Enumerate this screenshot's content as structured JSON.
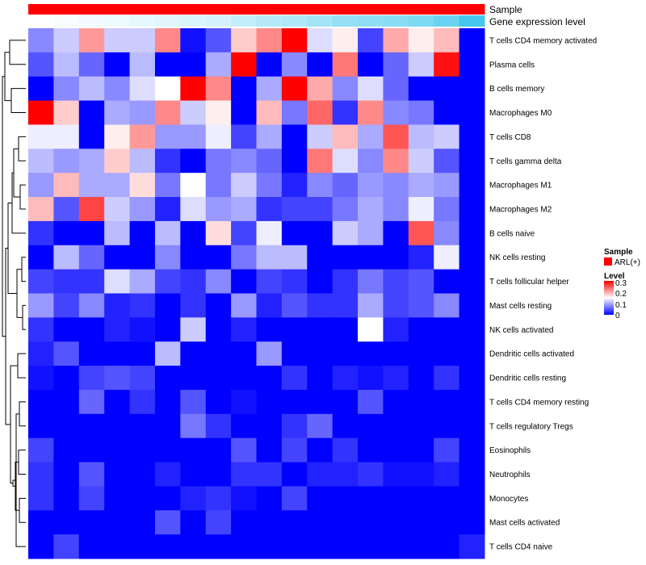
{
  "chart_data": {
    "type": "heatmap",
    "title": "",
    "annotation_rows": [
      "Sample",
      "Gene expression level"
    ],
    "sample_group": "ARL(+)",
    "n_columns": 18,
    "color_scale": {
      "min": 0,
      "max": 0.3,
      "low_color": "#0000ff",
      "mid_color": "#ffffff",
      "high_color": "#ff0000"
    },
    "legend": {
      "sample_title": "Sample",
      "sample_entry": "ARL(+)",
      "level_title": "Level",
      "ticks": [
        "0.3",
        "0.2",
        "0.1",
        "0"
      ]
    },
    "rows": [
      "T cells CD4 memory activated",
      "Plasma cells",
      "B cells memory",
      "Macrophages M0",
      "T cells CD8",
      "T cells gamma delta",
      "Macrophages M1",
      "Macrophages M2",
      "B cells naive",
      "NK cells resting",
      "T cells follicular helper",
      "Mast cells resting",
      "NK cells activated",
      "Dendritic cells activated",
      "Dendritic cells resting",
      "T cells CD4 memory resting",
      "T cells regulatory  Tregs",
      "Eosinophils",
      "Neutrophils",
      "Monocytes",
      "Mast cells activated",
      "T cells CD4 naive"
    ],
    "values": [
      [
        0.08,
        0.12,
        0.21,
        0.12,
        0.12,
        0.22,
        0.01,
        0.05,
        0.18,
        0.22,
        0.3,
        0.13,
        0.16,
        0.04,
        0.2,
        0.16,
        0.19,
        0.0
      ],
      [
        0.05,
        0.11,
        0.06,
        0.0,
        0.11,
        0.0,
        0.0,
        0.1,
        0.3,
        0.0,
        0.08,
        0.0,
        0.23,
        0.0,
        0.06,
        0.12,
        0.29,
        0.0
      ],
      [
        0.0,
        0.08,
        0.11,
        0.08,
        0.13,
        0.15,
        0.3,
        0.22,
        0.0,
        0.1,
        0.3,
        0.2,
        0.08,
        0.13,
        0.06,
        0.0,
        0.0,
        0.0
      ],
      [
        0.3,
        0.18,
        0.0,
        0.1,
        0.09,
        0.22,
        0.12,
        0.16,
        0.0,
        0.19,
        0.07,
        0.24,
        0.03,
        0.22,
        0.08,
        0.07,
        0.0,
        0.0
      ],
      [
        0.14,
        0.14,
        0.0,
        0.16,
        0.21,
        0.09,
        0.09,
        0.14,
        0.04,
        0.1,
        0.0,
        0.12,
        0.19,
        0.1,
        0.25,
        0.11,
        0.12,
        0.0
      ],
      [
        0.11,
        0.09,
        0.1,
        0.18,
        0.11,
        0.03,
        0.0,
        0.07,
        0.08,
        0.06,
        0.0,
        0.23,
        0.13,
        0.08,
        0.22,
        0.12,
        0.05,
        0.0
      ],
      [
        0.09,
        0.19,
        0.1,
        0.1,
        0.17,
        0.07,
        0.15,
        0.07,
        0.12,
        0.07,
        0.02,
        0.08,
        0.06,
        0.09,
        0.08,
        0.1,
        0.09,
        0.0
      ],
      [
        0.19,
        0.05,
        0.26,
        0.12,
        0.09,
        0.02,
        0.13,
        0.09,
        0.1,
        0.03,
        0.04,
        0.04,
        0.07,
        0.1,
        0.08,
        0.14,
        0.07,
        0.0
      ],
      [
        0.03,
        0.0,
        0.0,
        0.11,
        0.0,
        0.11,
        0.0,
        0.17,
        0.04,
        0.14,
        0.0,
        0.0,
        0.12,
        0.1,
        0.0,
        0.25,
        0.08,
        0.0
      ],
      [
        0.0,
        0.11,
        0.06,
        0.0,
        0.0,
        0.08,
        0.0,
        0.0,
        0.07,
        0.11,
        0.11,
        0.0,
        0.0,
        0.0,
        0.0,
        0.02,
        0.14,
        0.0
      ],
      [
        0.04,
        0.03,
        0.03,
        0.13,
        0.1,
        0.04,
        0.03,
        0.08,
        0.0,
        0.04,
        0.03,
        0.0,
        0.03,
        0.07,
        0.04,
        0.05,
        0.0,
        0.0
      ],
      [
        0.09,
        0.04,
        0.08,
        0.02,
        0.03,
        0.0,
        0.03,
        0.0,
        0.09,
        0.02,
        0.05,
        0.03,
        0.03,
        0.1,
        0.04,
        0.05,
        0.08,
        0.0
      ],
      [
        0.03,
        0.0,
        0.0,
        0.02,
        0.01,
        0.0,
        0.12,
        0.0,
        0.02,
        0.0,
        0.0,
        0.0,
        0.0,
        0.15,
        0.02,
        0.0,
        0.0,
        0.0
      ],
      [
        0.02,
        0.05,
        0.0,
        0.0,
        0.0,
        0.11,
        0.0,
        0.0,
        0.0,
        0.09,
        0.0,
        0.0,
        0.0,
        0.0,
        0.0,
        0.0,
        0.0,
        0.0
      ],
      [
        0.01,
        0.0,
        0.04,
        0.05,
        0.04,
        0.0,
        0.0,
        0.0,
        0.0,
        0.0,
        0.03,
        0.0,
        0.02,
        0.01,
        0.02,
        0.0,
        0.03,
        0.0
      ],
      [
        0.0,
        0.0,
        0.06,
        0.0,
        0.03,
        0.0,
        0.05,
        0.0,
        0.01,
        0.0,
        0.0,
        0.0,
        0.0,
        0.05,
        0.0,
        0.0,
        0.0,
        0.0
      ],
      [
        0.0,
        0.0,
        0.0,
        0.0,
        0.0,
        0.0,
        0.07,
        0.03,
        0.0,
        0.0,
        0.03,
        0.06,
        0.0,
        0.0,
        0.0,
        0.0,
        0.0,
        0.0
      ],
      [
        0.04,
        0.0,
        0.0,
        0.0,
        0.0,
        0.0,
        0.0,
        0.0,
        0.05,
        0.0,
        0.04,
        0.0,
        0.03,
        0.0,
        0.0,
        0.0,
        0.04,
        0.0
      ],
      [
        0.03,
        0.0,
        0.05,
        0.0,
        0.0,
        0.02,
        0.0,
        0.0,
        0.03,
        0.03,
        0.0,
        0.02,
        0.02,
        0.03,
        0.01,
        0.01,
        0.02,
        0.0
      ],
      [
        0.03,
        0.0,
        0.04,
        0.0,
        0.0,
        0.0,
        0.02,
        0.03,
        0.01,
        0.0,
        0.04,
        0.0,
        0.0,
        0.0,
        0.0,
        0.0,
        0.0,
        0.0
      ],
      [
        0.0,
        0.0,
        0.0,
        0.0,
        0.0,
        0.05,
        0.0,
        0.04,
        0.0,
        0.0,
        0.0,
        0.0,
        0.0,
        0.0,
        0.0,
        0.0,
        0.0,
        0.0
      ],
      [
        0.0,
        0.04,
        0.0,
        0.0,
        0.0,
        0.0,
        0.0,
        0.0,
        0.0,
        0.0,
        0.0,
        0.0,
        0.0,
        0.0,
        0.0,
        0.0,
        0.0,
        0.02
      ]
    ],
    "expression_level": [
      0.0,
      0.01,
      0.02,
      0.03,
      0.04,
      0.05,
      0.06,
      0.07,
      0.1,
      0.12,
      0.13,
      0.15,
      0.17,
      0.18,
      0.19,
      0.21,
      0.24,
      0.3
    ]
  }
}
